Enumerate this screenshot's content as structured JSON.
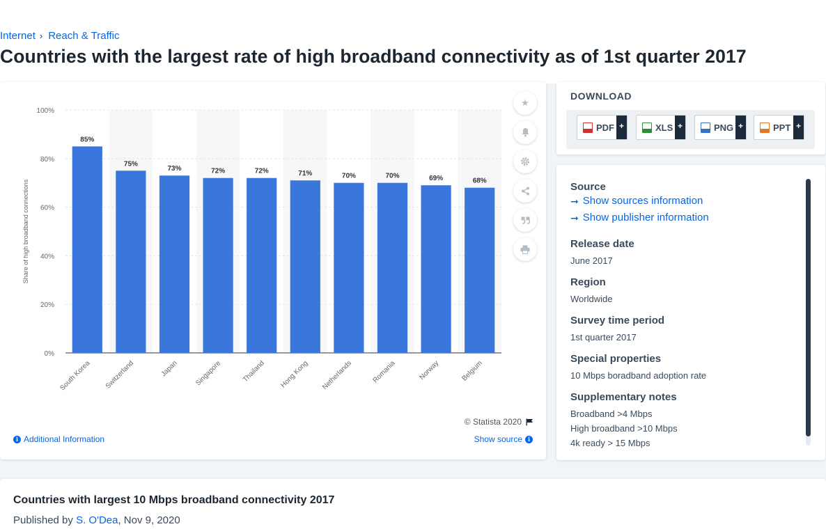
{
  "breadcrumb": {
    "items": [
      "Internet",
      "Reach & Traffic"
    ]
  },
  "title": "Countries with the largest rate of high broadband connectivity as of 1st quarter 2017",
  "chart_data": {
    "type": "bar",
    "categories": [
      "South Korea",
      "Switzerland",
      "Japan",
      "Singapore",
      "Thailand",
      "Hong Kong",
      "Netherlands",
      "Romania",
      "Norway",
      "Belgium"
    ],
    "values": [
      85,
      75,
      73,
      72,
      72,
      71,
      70,
      70,
      69,
      68
    ],
    "value_labels": [
      "85%",
      "75%",
      "73%",
      "72%",
      "72%",
      "71%",
      "70%",
      "70%",
      "69%",
      "68%"
    ],
    "ylabel": "Share of high broadband connections",
    "ylim": [
      0,
      100
    ],
    "yticks": [
      "0%",
      "20%",
      "40%",
      "60%",
      "80%",
      "100%"
    ],
    "bar_color": "#3a76dc",
    "grid": "alternating column bands"
  },
  "credit": "© Statista 2020",
  "links": {
    "additional_info": "Additional Information",
    "show_source": "Show source"
  },
  "download": {
    "title": "DOWNLOAD",
    "buttons": [
      {
        "label": "PDF",
        "icon": "pdf-file-icon",
        "color": "#d0312d"
      },
      {
        "label": "XLS",
        "icon": "xls-file-icon",
        "color": "#2e8b3a"
      },
      {
        "label": "PNG",
        "icon": "png-file-icon",
        "color": "#3a6fc4"
      },
      {
        "label": "PPT",
        "icon": "ppt-file-icon",
        "color": "#e07a2a"
      }
    ],
    "plus": "+"
  },
  "details": {
    "source": {
      "heading": "Source",
      "show_sources": "Show sources information",
      "show_publisher": "Show publisher information"
    },
    "release": {
      "heading": "Release date",
      "value": "June 2017"
    },
    "region": {
      "heading": "Region",
      "value": "Worldwide"
    },
    "period": {
      "heading": "Survey time period",
      "value": "1st quarter 2017"
    },
    "special": {
      "heading": "Special properties",
      "value": "10 Mbps boradband adoption rate"
    },
    "notes": {
      "heading": "Supplementary notes",
      "lines": [
        "Broadband >4 Mbps",
        "High broadband >10 Mbps",
        "4k ready > 15 Mbps"
      ]
    }
  },
  "footer": {
    "title": "Countries with largest 10 Mbps broadband connectivity 2017",
    "published_prefix": "Published by",
    "author": "S. O'Dea",
    "date": ", Nov 9, 2020"
  }
}
